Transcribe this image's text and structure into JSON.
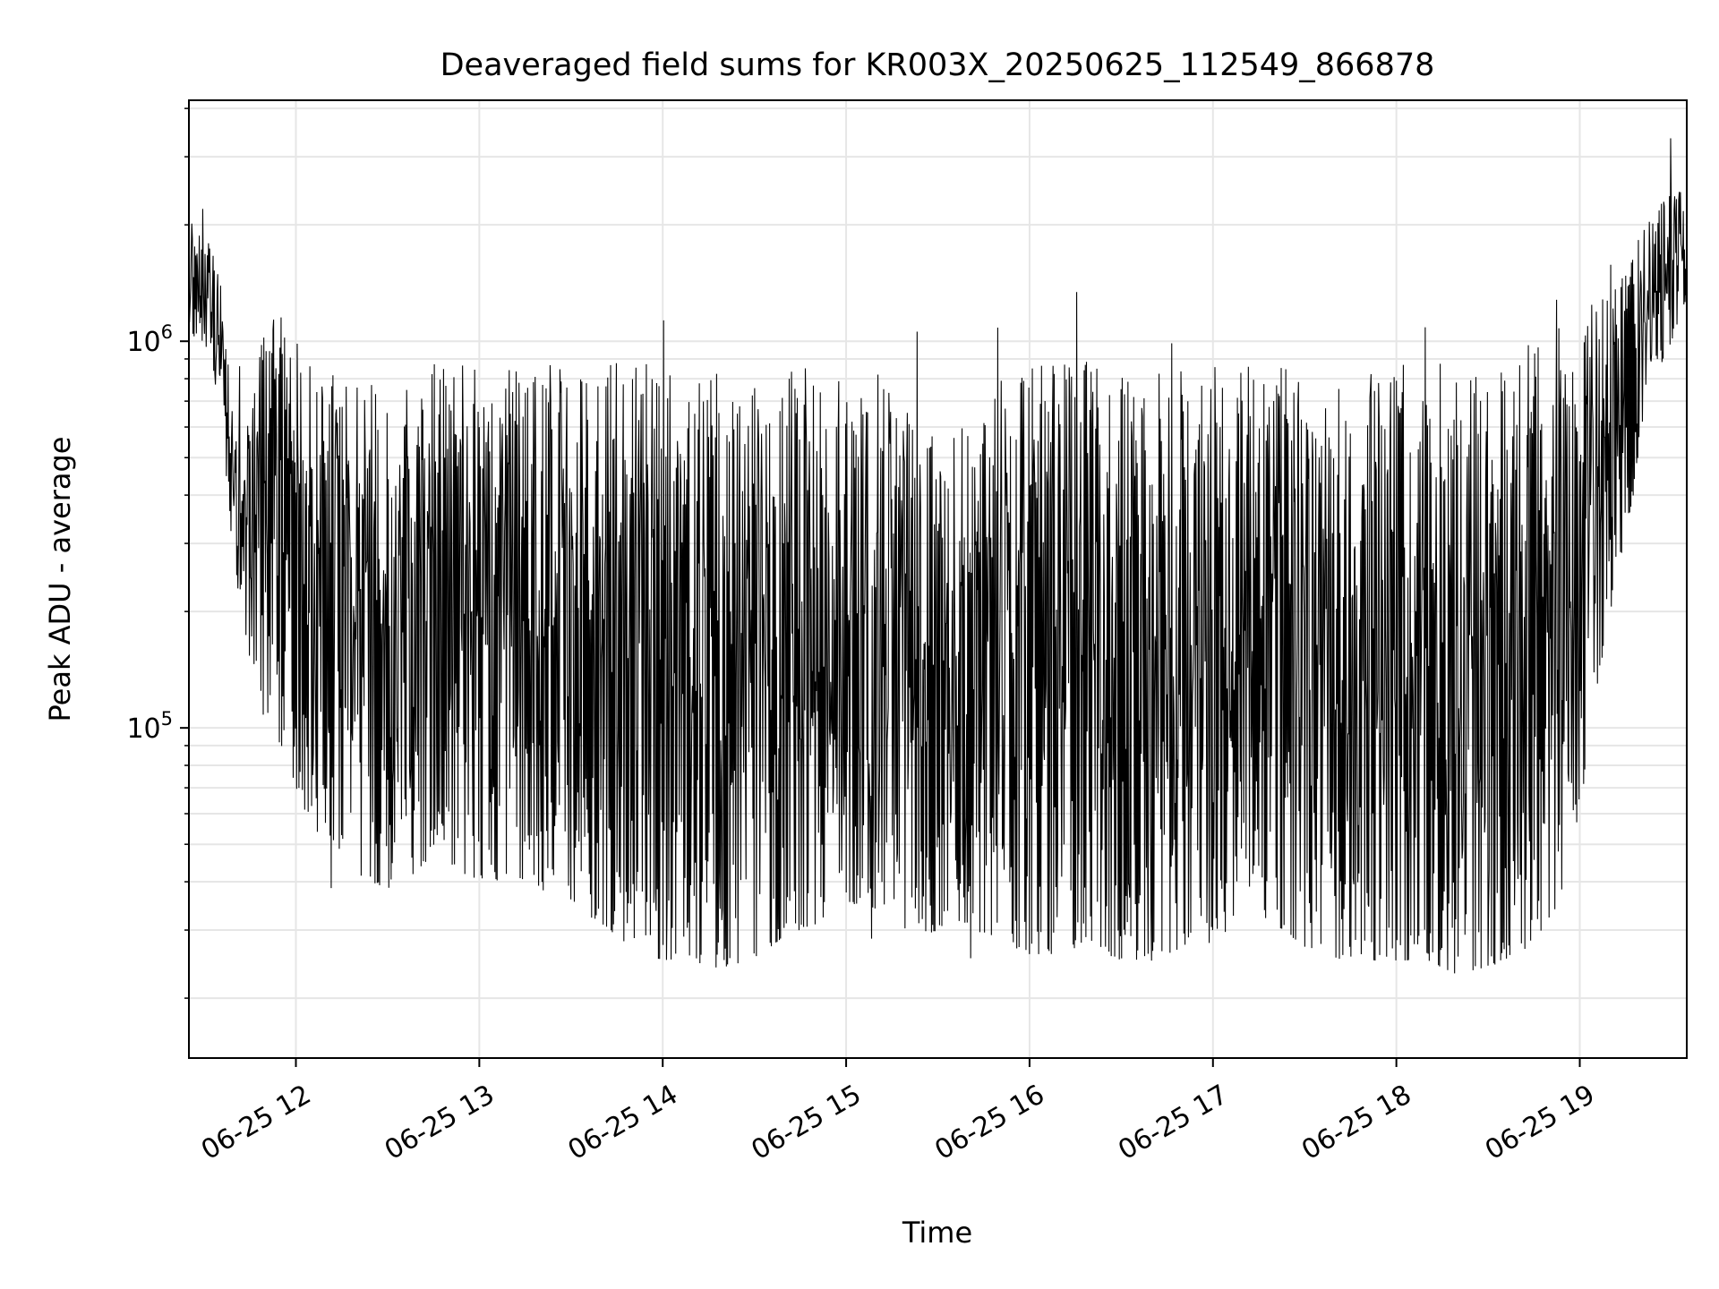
{
  "chart_data": {
    "type": "line",
    "title": "Deaveraged field sums for KR003X_20250625_112549_866878",
    "xlabel": "Time",
    "ylabel": "Peak ADU - average",
    "yscale": "log",
    "ylim": [
      14000,
      4200000
    ],
    "xlim": [
      "2025-06-25 11:25",
      "2025-06-25 19:35"
    ],
    "grid": true,
    "line_color": "#000000",
    "x_ticks": [
      "06-25 12",
      "06-25 13",
      "06-25 14",
      "06-25 15",
      "06-25 16",
      "06-25 17",
      "06-25 18",
      "06-25 19"
    ],
    "y_ticks": [
      {
        "base": "10",
        "exp": "5",
        "value": 100000
      },
      {
        "base": "10",
        "exp": "6",
        "value": 1000000
      }
    ],
    "series": [
      {
        "x": [
          "2025-06-25 11:25",
          "2025-06-25 11:30",
          "2025-06-25 11:35",
          "2025-06-25 11:40",
          "2025-06-25 11:45",
          "2025-06-25 11:50",
          "2025-06-25 11:55",
          "2025-06-25 12:00",
          "2025-06-25 12:05",
          "2025-06-25 12:10",
          "2025-06-25 12:15",
          "2025-06-25 12:20",
          "2025-06-25 12:25",
          "2025-06-25 12:30",
          "2025-06-25 12:35",
          "2025-06-25 12:40",
          "2025-06-25 12:45",
          "2025-06-25 12:50",
          "2025-06-25 12:55",
          "2025-06-25 13:00",
          "2025-06-25 13:05",
          "2025-06-25 13:10",
          "2025-06-25 13:15",
          "2025-06-25 13:20",
          "2025-06-25 13:25",
          "2025-06-25 13:30",
          "2025-06-25 13:35",
          "2025-06-25 13:40",
          "2025-06-25 13:45",
          "2025-06-25 13:50",
          "2025-06-25 13:55",
          "2025-06-25 14:00",
          "2025-06-25 14:05",
          "2025-06-25 14:10",
          "2025-06-25 14:15",
          "2025-06-25 14:20",
          "2025-06-25 14:25",
          "2025-06-25 14:30",
          "2025-06-25 14:35",
          "2025-06-25 14:40",
          "2025-06-25 14:45",
          "2025-06-25 14:50",
          "2025-06-25 14:55",
          "2025-06-25 15:00",
          "2025-06-25 15:05",
          "2025-06-25 15:10",
          "2025-06-25 15:15",
          "2025-06-25 15:20",
          "2025-06-25 15:25",
          "2025-06-25 15:30",
          "2025-06-25 15:35",
          "2025-06-25 15:40",
          "2025-06-25 15:45",
          "2025-06-25 15:50",
          "2025-06-25 15:55",
          "2025-06-25 16:00",
          "2025-06-25 16:05",
          "2025-06-25 16:10",
          "2025-06-25 16:15",
          "2025-06-25 16:20",
          "2025-06-25 16:25",
          "2025-06-25 16:30",
          "2025-06-25 16:35",
          "2025-06-25 16:40",
          "2025-06-25 16:45",
          "2025-06-25 16:50",
          "2025-06-25 16:55",
          "2025-06-25 17:00",
          "2025-06-25 17:05",
          "2025-06-25 17:10",
          "2025-06-25 17:15",
          "2025-06-25 17:20",
          "2025-06-25 17:25",
          "2025-06-25 17:30",
          "2025-06-25 17:35",
          "2025-06-25 17:40",
          "2025-06-25 17:45",
          "2025-06-25 17:50",
          "2025-06-25 17:55",
          "2025-06-25 18:00",
          "2025-06-25 18:05",
          "2025-06-25 18:10",
          "2025-06-25 18:15",
          "2025-06-25 18:20",
          "2025-06-25 18:25",
          "2025-06-25 18:30",
          "2025-06-25 18:35",
          "2025-06-25 18:40",
          "2025-06-25 18:45",
          "2025-06-25 18:50",
          "2025-06-25 18:55",
          "2025-06-25 19:00",
          "2025-06-25 19:05",
          "2025-06-25 19:10",
          "2025-06-25 19:15",
          "2025-06-25 19:20",
          "2025-06-25 19:25",
          "2025-06-25 19:30",
          "2025-06-25 19:35"
        ],
        "low": [
          1100000,
          900000,
          700000,
          250000,
          150000,
          100000,
          90000,
          70000,
          55000,
          50000,
          45000,
          42000,
          40000,
          38000,
          38000,
          40000,
          50000,
          45000,
          42000,
          40000,
          40000,
          42000,
          40000,
          38000,
          38000,
          36000,
          33000,
          31000,
          29000,
          27000,
          26000,
          25000,
          25000,
          25000,
          24000,
          24000,
          24000,
          25000,
          27000,
          29000,
          30000,
          31000,
          33000,
          35000,
          35000,
          34000,
          32000,
          30000,
          29000,
          30000,
          32000,
          31000,
          29000,
          28000,
          27000,
          26000,
          26000,
          26000,
          27000,
          28000,
          26000,
          25000,
          25000,
          25000,
          26000,
          27000,
          27000,
          28000,
          30000,
          32000,
          33000,
          31000,
          29000,
          27000,
          26000,
          25000,
          25000,
          25000,
          25000,
          25000,
          25000,
          25000,
          24000,
          23000,
          23000,
          24000,
          25000,
          26000,
          28000,
          30000,
          40000,
          60000,
          120000,
          200000,
          320000,
          500000,
          800000,
          1000000,
          1300000
        ],
        "high": [
          2200000,
          2200000,
          1500000,
          600000,
          800000,
          1100000,
          1200000,
          1000000,
          900000,
          900000,
          850000,
          800000,
          780000,
          760000,
          800000,
          850000,
          880000,
          900000,
          880000,
          850000,
          830000,
          850000,
          880000,
          900000,
          880000,
          870000,
          880000,
          900000,
          890000,
          880000,
          880000,
          880000,
          870000,
          860000,
          860000,
          870000,
          880000,
          880000,
          890000,
          870000,
          860000,
          850000,
          860000,
          870000,
          880000,
          850000,
          780000,
          720000,
          650000,
          600000,
          620000,
          680000,
          720000,
          800000,
          830000,
          850000,
          900000,
          950000,
          920000,
          880000,
          860000,
          850000,
          830000,
          820000,
          830000,
          850000,
          870000,
          880000,
          880000,
          880000,
          870000,
          860000,
          850000,
          840000,
          830000,
          820000,
          820000,
          830000,
          840000,
          850000,
          860000,
          870000,
          880000,
          890000,
          900000,
          920000,
          950000,
          980000,
          1000000,
          1050000,
          1100000,
          1150000,
          1250000,
          1400000,
          1600000,
          1900000,
          2200000,
          2500000,
          2700000
        ]
      }
    ]
  }
}
